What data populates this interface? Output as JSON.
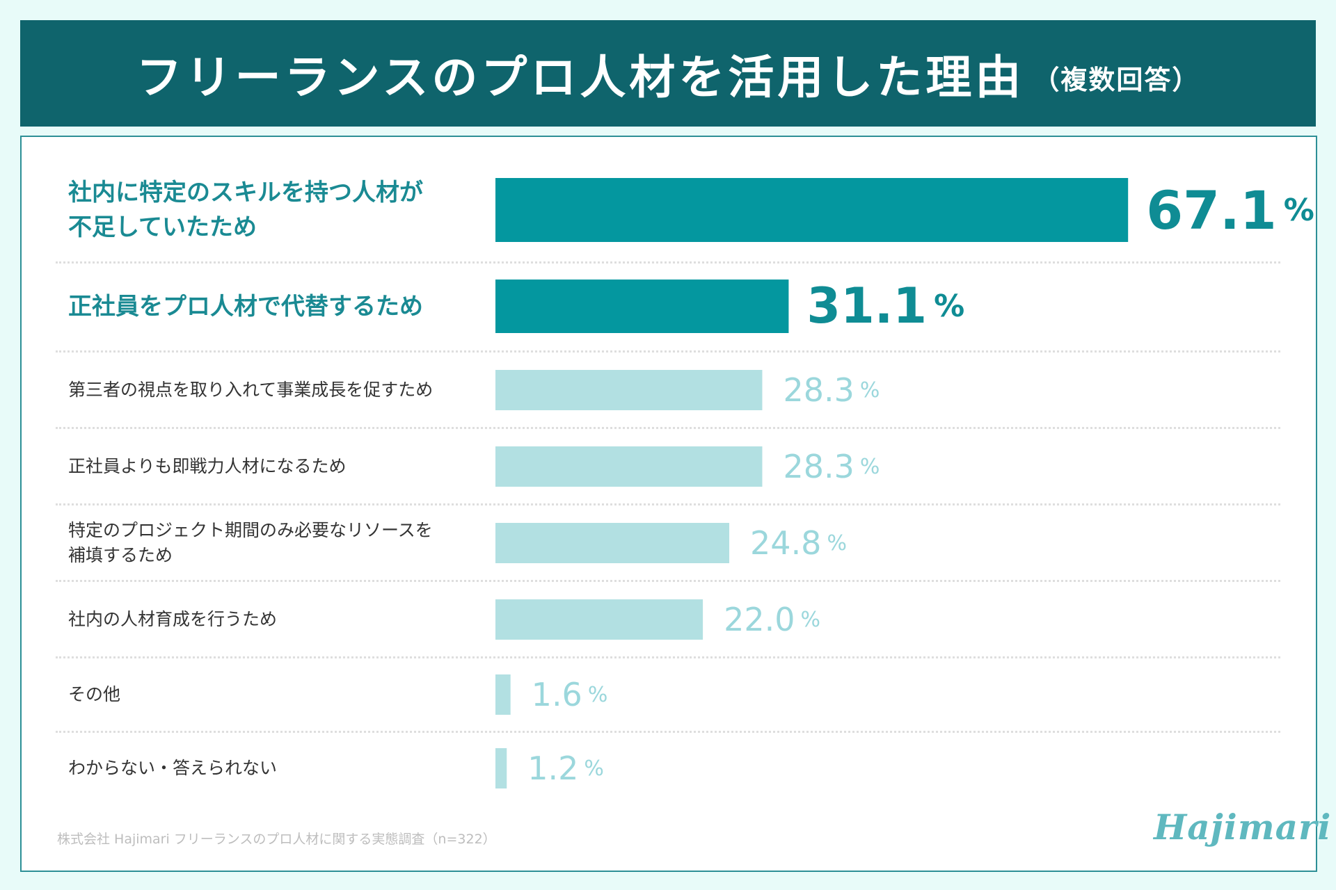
{
  "title": "フリーランスのプロ人材を活用した理由",
  "title_note": "（複数回答）",
  "colors": {
    "header_bg": "#0f646c",
    "bar_highlight": "#04979f",
    "bar_normal": "#b2e0e2",
    "value_highlight": "#0f8c94",
    "value_normal": "#9bd7dc"
  },
  "chart_data": {
    "type": "bar",
    "orientation": "horizontal",
    "categories": [
      "社内に特定のスキルを持つ人材が\n不足していたため",
      "正社員をプロ人材で代替するため",
      "第三者の視点を取り入れて事業成長を促すため",
      "正社員よりも即戦力人材になるため",
      "特定のプロジェクト期間のみ必要なリソースを\n補填するため",
      "社内の人材育成を行うため",
      "その他",
      "わからない・答えられない"
    ],
    "values": [
      67.1,
      31.1,
      28.3,
      28.3,
      24.8,
      22.0,
      1.6,
      1.2
    ],
    "value_labels": [
      "67.1",
      "31.1",
      "28.3",
      "28.3",
      "24.8",
      "22.0",
      "1.6",
      "1.2"
    ],
    "unit": "%",
    "highlighted": [
      0,
      1
    ],
    "xlim": [
      0,
      100
    ],
    "title": "フリーランスのプロ人材を活用した理由（複数回答）"
  },
  "source_note": "株式会社 Hajimari フリーランスのプロ人材に関する実態調査（n=322）",
  "logo": "Hajimari"
}
